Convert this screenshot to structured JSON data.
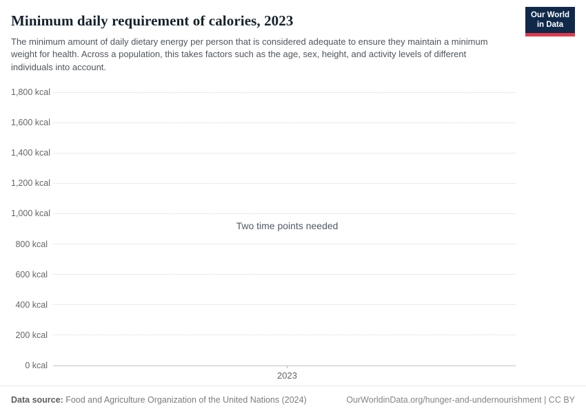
{
  "header": {
    "title": "Minimum daily requirement of calories, 2023",
    "subtitle": "The minimum amount of daily dietary energy per person that is considered adequate to ensure they maintain a minimum weight for health. Across a population, this takes factors such as the age, sex, height, and activity levels of different individuals into account.",
    "logo": {
      "line1": "Our World",
      "line2": "in Data",
      "background": "#10294a",
      "accent": "#e23a4e"
    }
  },
  "chart_data": {
    "type": "line",
    "title": "Minimum daily requirement of calories, 2023",
    "series": [],
    "x": [
      "2023"
    ],
    "message": "Two time points needed",
    "xlabel": "",
    "ylabel": "",
    "ylim": [
      0,
      1800
    ],
    "yticks": [
      1800,
      1600,
      1400,
      1200,
      1000,
      800,
      600,
      400,
      200,
      0
    ],
    "ytick_labels": [
      "1,800 kcal",
      "1,600 kcal",
      "1,400 kcal",
      "1,200 kcal",
      "1,000 kcal",
      "800 kcal",
      "600 kcal",
      "400 kcal",
      "200 kcal",
      "0 kcal"
    ],
    "xticks": [
      "2023"
    ],
    "grid": "horizontal-dotted",
    "legend": "none"
  },
  "footer": {
    "datasource_label": "Data source:",
    "datasource_value": "Food and Agriculture Organization of the United Nations (2024)",
    "link": "OurWorldinData.org/hunger-and-undernourishment | CC BY"
  }
}
